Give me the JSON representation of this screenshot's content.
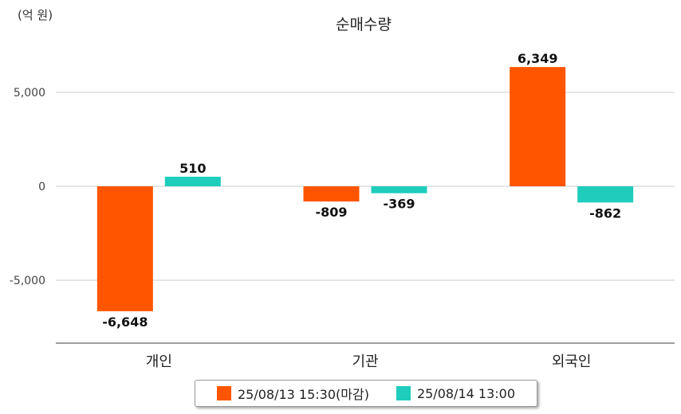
{
  "chart_data": {
    "type": "bar",
    "title": "순매수량",
    "unit_label": "(억 원)",
    "categories": [
      "개인",
      "기관",
      "외국인"
    ],
    "series": [
      {
        "name": "25/08/13 15:30(마감)",
        "color": "#ff5500",
        "values": [
          -6648,
          -809,
          6349
        ]
      },
      {
        "name": "25/08/14 13:00",
        "color": "#1fcdbd",
        "values": [
          510,
          -369,
          -862
        ]
      }
    ],
    "value_labels": [
      [
        "-6,648",
        "-809",
        "6,349"
      ],
      [
        "510",
        "-369",
        "-862"
      ]
    ],
    "y_ticks": [
      5000,
      0,
      -5000
    ],
    "y_tick_labels": [
      "5,000",
      "0",
      "-5,000"
    ],
    "ylim": [
      -8300,
      7700
    ],
    "grid": true,
    "legend_position": "bottom"
  }
}
